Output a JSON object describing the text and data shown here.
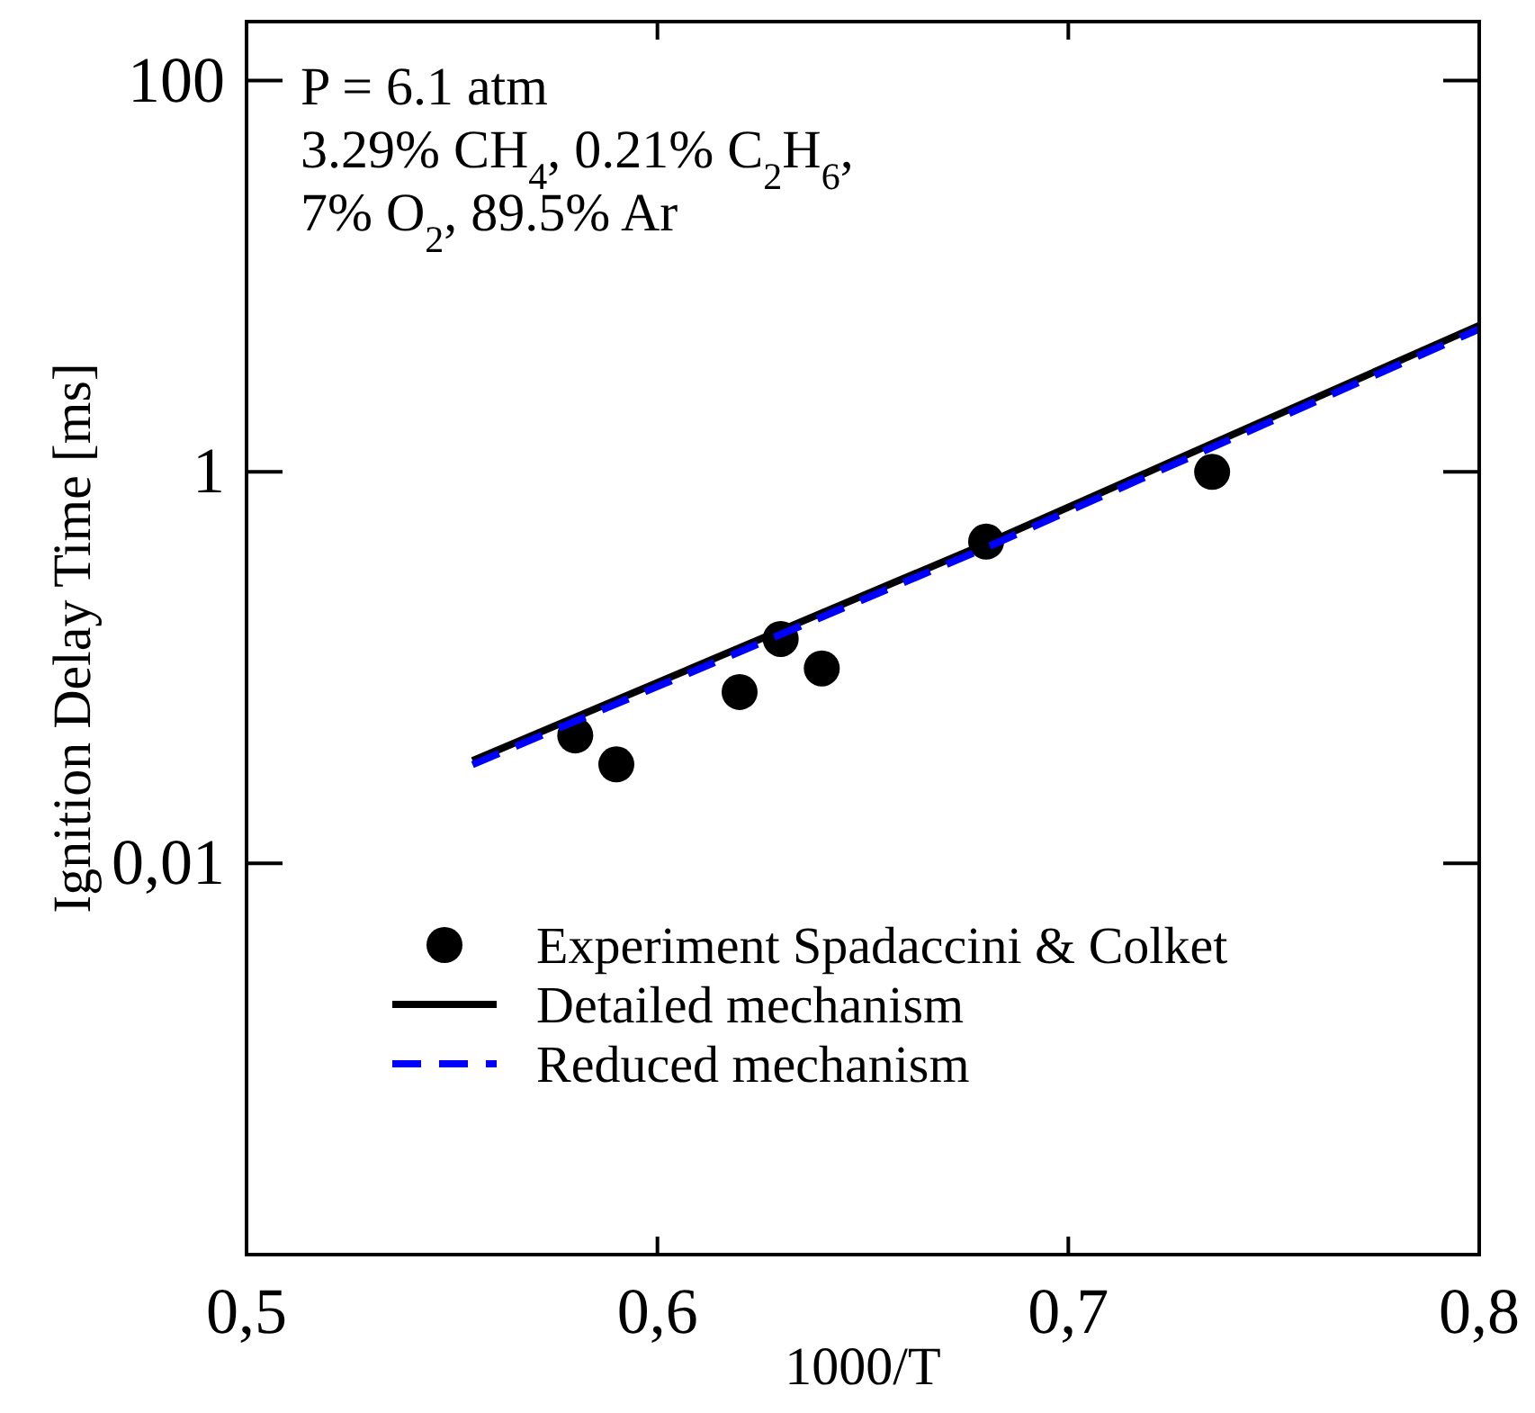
{
  "chart_data": {
    "type": "scatter",
    "xlabel": "1000/T",
    "ylabel": "Ignition Delay Time [ms]",
    "annotations": [
      "P = 6.1 atm",
      "3.29% CH$_{4}$, 0.21% C$_{2}$H$_{6}$,",
      "7% O$_{2}$, 89.5% Ar"
    ],
    "log": "y",
    "xlim": [
      0.5,
      0.8
    ],
    "xticks": [
      "0,5",
      {
        "value": 0.6,
        "label": "0,6"
      },
      {
        "value": 0.7,
        "label": "0,7"
      },
      {
        "value": 0.8,
        "label": "0,8"
      }
    ],
    "ylim": [
      0.0001,
      200
    ],
    "yticks": [
      {
        "value": 0.01,
        "label": "0,01"
      },
      1,
      100
    ],
    "grid": false,
    "legend": "bottom right",
    "series": [
      {
        "name": "Experiment Spadaccini & Colket",
        "type": "scatter",
        "marker": "circle",
        "color": "#000000",
        "x": [
          0.58,
          0.59,
          0.62,
          0.63,
          0.64,
          0.68,
          0.735
        ],
        "values": [
          0.045,
          0.032,
          0.075,
          0.14,
          0.099,
          0.44,
          1.0
        ]
      },
      {
        "name": "Detailed mechanism",
        "type": "line",
        "marker": "none",
        "line_style": "solid",
        "color": "#000000",
        "x": [
          0.555,
          0.68,
          0.8
        ],
        "values": [
          0.0334,
          0.43,
          5.6
        ]
      },
      {
        "name": "Reduced mechanism",
        "type": "line",
        "marker": "none",
        "line_style": "dashed",
        "color": "#0000ff",
        "x": [
          0.555,
          0.68,
          0.8
        ],
        "values": [
          0.0319,
          0.41,
          5.37
        ]
      }
    ]
  }
}
